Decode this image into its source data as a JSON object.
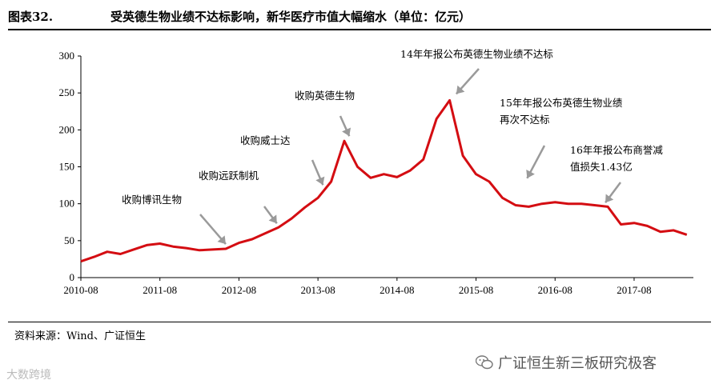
{
  "figure": {
    "number": "图表32.",
    "title": "受英德生物业绩不达标影响，新华医疗市值大幅缩水（单位：亿元）",
    "source": "资料来源：Wind、广证恒生"
  },
  "watermarks": {
    "left": "大数跨境",
    "right": "广证恒生新三板研究极客"
  },
  "colors": {
    "series": "#d40d12",
    "arrow": "#9a9a9a"
  },
  "chart_data": {
    "type": "line",
    "title": "",
    "xlabel": "",
    "ylabel": "",
    "ylim": [
      0,
      300
    ],
    "yticks": [
      0,
      50,
      100,
      150,
      200,
      250,
      300
    ],
    "xticks": [
      "2010-08",
      "2011-08",
      "2012-08",
      "2013-08",
      "2014-08",
      "2015-08",
      "2016-08",
      "2017-08"
    ],
    "x": [
      "2010-08",
      "2010-10",
      "2010-12",
      "2011-02",
      "2011-04",
      "2011-06",
      "2011-08",
      "2011-10",
      "2011-12",
      "2012-02",
      "2012-04",
      "2012-06",
      "2012-08",
      "2012-10",
      "2012-12",
      "2013-02",
      "2013-04",
      "2013-06",
      "2013-08",
      "2013-10",
      "2013-12",
      "2014-02",
      "2014-04",
      "2014-06",
      "2014-08",
      "2014-10",
      "2014-12",
      "2015-02",
      "2015-04",
      "2015-06",
      "2015-08",
      "2015-10",
      "2015-12",
      "2016-02",
      "2016-04",
      "2016-06",
      "2016-08",
      "2016-10",
      "2016-12",
      "2017-02",
      "2017-04",
      "2017-06",
      "2017-08",
      "2017-10",
      "2017-12",
      "2018-02",
      "2018-04"
    ],
    "series": [
      {
        "name": "",
        "values": [
          22,
          28,
          35,
          32,
          38,
          44,
          46,
          42,
          40,
          37,
          38,
          39,
          47,
          52,
          60,
          68,
          80,
          95,
          108,
          130,
          185,
          150,
          135,
          140,
          136,
          145,
          160,
          215,
          240,
          165,
          140,
          130,
          108,
          98,
          96,
          100,
          102,
          100,
          100,
          98,
          96,
          72,
          74,
          70,
          62,
          64,
          58
        ]
      }
    ],
    "annotations": [
      {
        "text": "收购博讯生物",
        "x": "2012-06",
        "y": 40
      },
      {
        "text": "收购远跃制机",
        "x": "2013-02",
        "y": 68
      },
      {
        "text": "收购威士达",
        "x": "2013-09",
        "y": 120
      },
      {
        "text": "收购英德生物",
        "x": "2014-01",
        "y": 185
      },
      {
        "text": "14年年报公布英德生物业绩不达标",
        "x": "2015-05",
        "y": 240
      },
      {
        "text": "15年年报公布英德生物业绩",
        "text2": "再次不达标",
        "x": "2016-04",
        "y": 128
      },
      {
        "text": "16年年报公布商誉减",
        "text2": "值损失1.43亿",
        "x": "2017-04",
        "y": 95
      }
    ]
  }
}
